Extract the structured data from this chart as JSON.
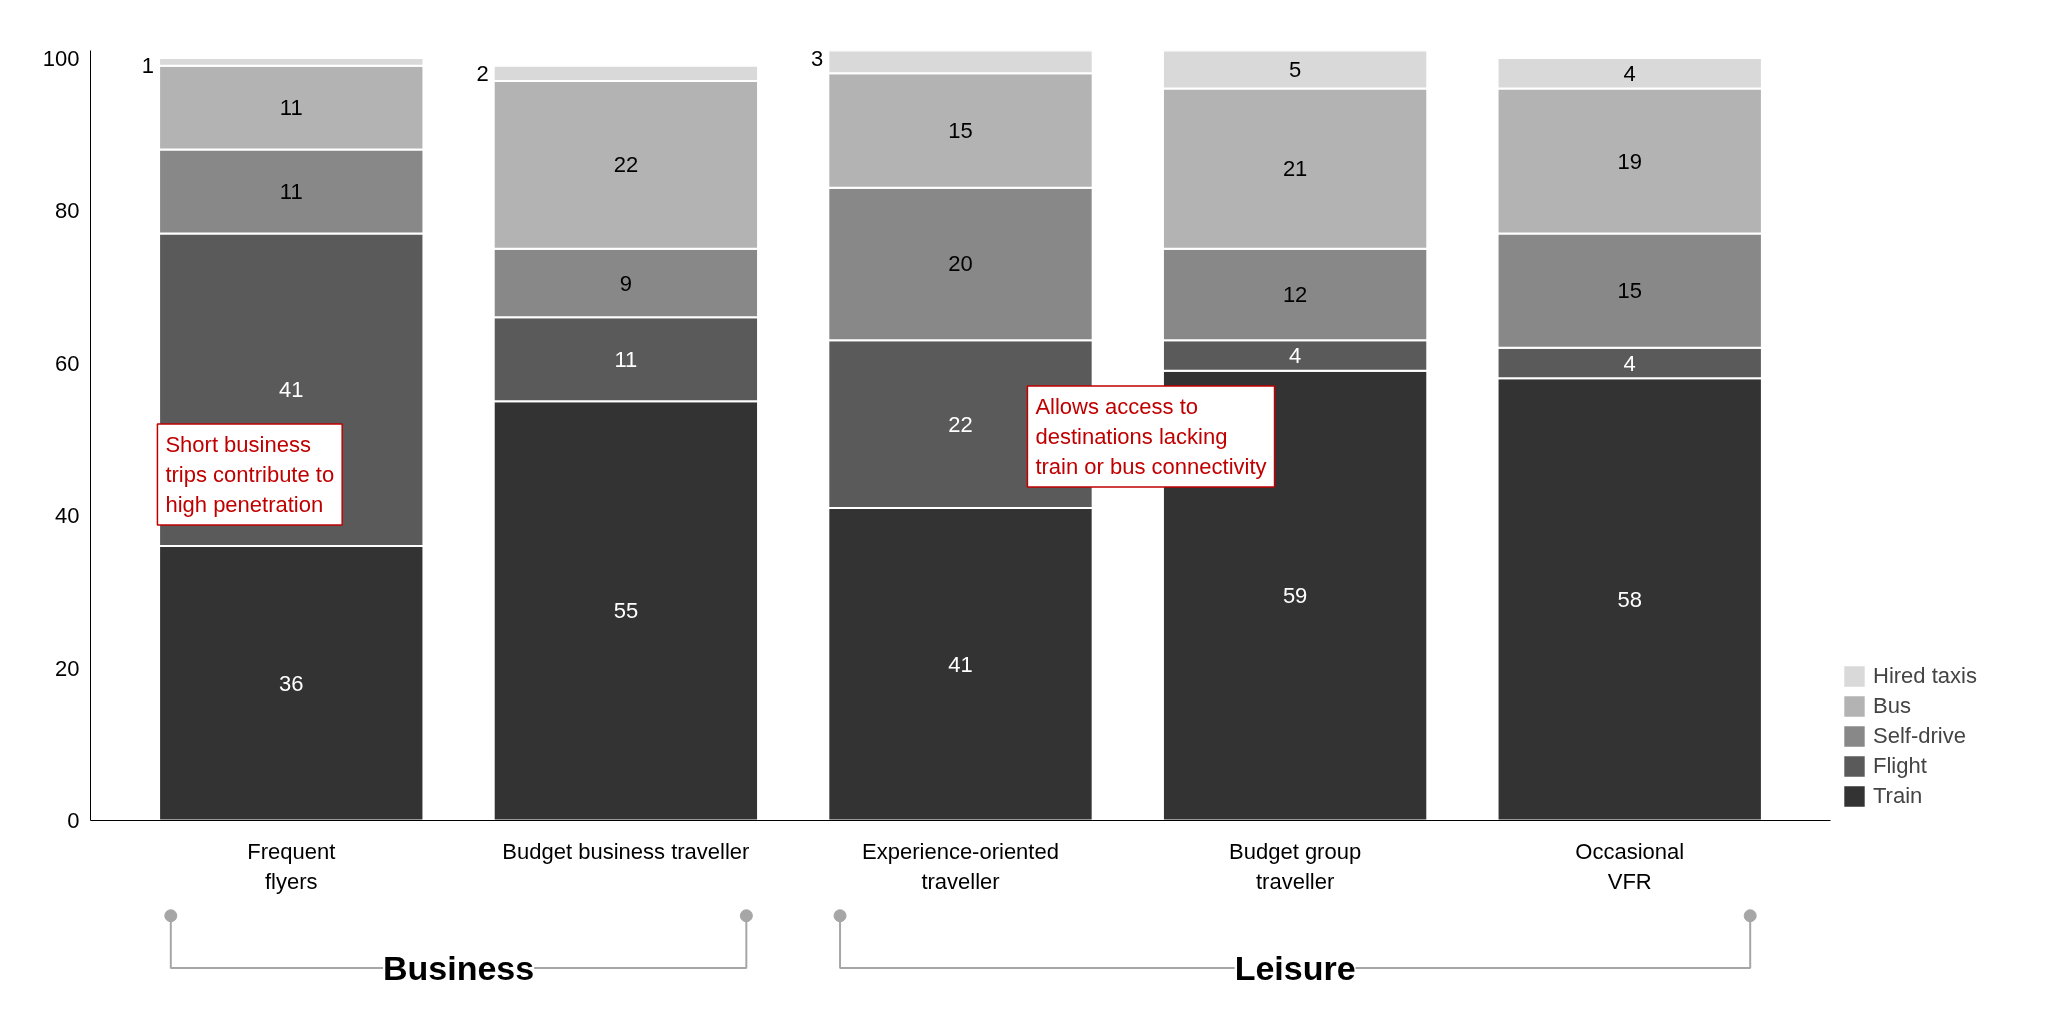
{
  "chart_data": {
    "type": "bar",
    "stacked": true,
    "categories": [
      "Frequent\nflyers",
      "Budget business traveller",
      "Experience-oriented\ntraveller",
      "Budget group\ntraveller",
      "Occasional\nVFR"
    ],
    "series": [
      {
        "name": "Train",
        "color": "#333333",
        "values": [
          36,
          55,
          41,
          59,
          58
        ]
      },
      {
        "name": "Flight",
        "color": "#5a5a5a",
        "values": [
          41,
          11,
          22,
          4,
          4
        ]
      },
      {
        "name": "Self-drive",
        "color": "#888888",
        "values": [
          11,
          9,
          20,
          12,
          15
        ]
      },
      {
        "name": "Bus",
        "color": "#b3b3b3",
        "values": [
          11,
          22,
          15,
          21,
          19
        ]
      },
      {
        "name": "Hired taxis",
        "color": "#d9d9d9",
        "values": [
          1,
          2,
          3,
          5,
          4
        ]
      }
    ],
    "data_labels": true,
    "ylim": [
      0,
      101
    ],
    "yticks": [
      0,
      20,
      40,
      60,
      80,
      100
    ],
    "grid": false,
    "legend": "bottom right",
    "annotations": [
      "Short business trips contribute to high penetration",
      "Allows access to destinations lacking train or bus connectivity",
      "Business",
      "Leisure"
    ]
  }
}
